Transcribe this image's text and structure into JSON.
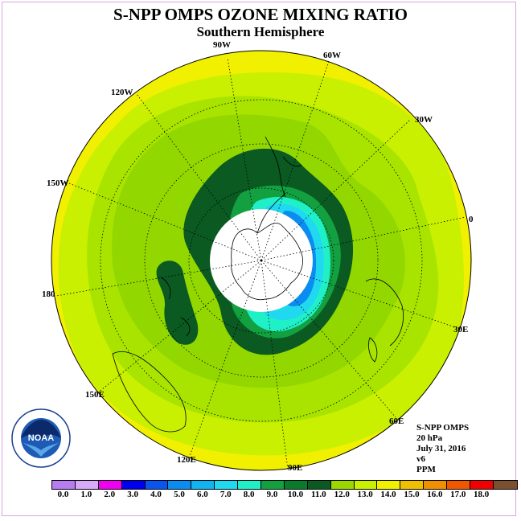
{
  "title": "S-NPP OMPS OZONE MIXING RATIO",
  "subtitle": "Southern Hemisphere",
  "longitude_labels": {
    "w90": "90W",
    "w60": "60W",
    "w30": "30W",
    "e0": "0",
    "e30": "30E",
    "e60": "60E",
    "e90": "90E",
    "e120": "120E",
    "e150": "150E",
    "e180": "180",
    "w150": "150W",
    "w120": "120W"
  },
  "info": {
    "instrument": "S-NPP OMPS",
    "level": "20 hPa",
    "date": "July 31, 2016",
    "version": "v6",
    "units": "PPM"
  },
  "logo": {
    "text": "NOAA",
    "icon": "noaa-logo-icon"
  },
  "colorbar": {
    "tick_labels": [
      "0.0",
      "1.0",
      "2.0",
      "3.0",
      "4.0",
      "5.0",
      "6.0",
      "7.0",
      "8.0",
      "9.0",
      "10.0",
      "11.0",
      "12.0",
      "13.0",
      "14.0",
      "15.0",
      "16.0",
      "17.0",
      "18.0"
    ],
    "colors": [
      "#b77cf0",
      "#d7aaf8",
      "#f000f0",
      "#0000f0",
      "#0a55f0",
      "#0a8cf0",
      "#10b4f0",
      "#20d8f0",
      "#20f0c8",
      "#12a040",
      "#0a7a2c",
      "#0a5a22",
      "#9ad800",
      "#c8f000",
      "#f0f000",
      "#f0c000",
      "#f09000",
      "#f05800",
      "#f00000",
      "#7a5030"
    ]
  },
  "map_colors": {
    "outer": "#f0f000",
    "ring_13_12": "#c8f000",
    "ring_12_11": "#a8e400",
    "ring_11_10": "#92d800",
    "dark_9_10": "#0a5a22",
    "mid_8_9": "#12a040",
    "cyan_7_8": "#20f0c8",
    "cyan_6_7": "#20d8f0",
    "blue_5_6": "#0a8cf0",
    "polar_night": "#ffffff"
  }
}
